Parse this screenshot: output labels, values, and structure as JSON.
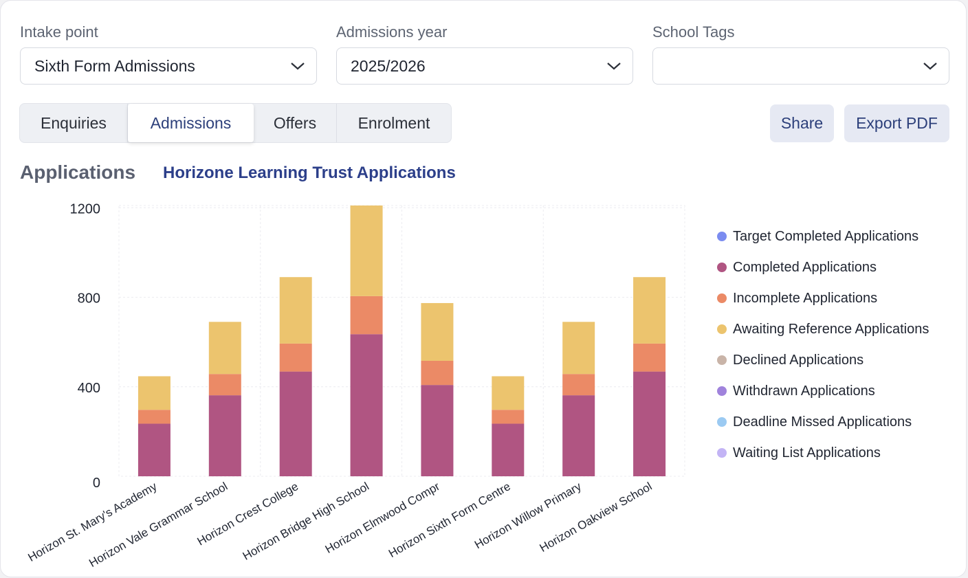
{
  "filters": {
    "intake": {
      "label": "Intake point",
      "value": "Sixth Form Admissions"
    },
    "year": {
      "label": "Admissions year",
      "value": "2025/2026"
    },
    "tags": {
      "label": "School Tags",
      "value": ""
    }
  },
  "tabs": [
    {
      "label": "Enquiries",
      "active": false
    },
    {
      "label": "Admissions",
      "active": true
    },
    {
      "label": "Offers",
      "active": false
    },
    {
      "label": "Enrolment",
      "active": false
    }
  ],
  "actions": {
    "share": "Share",
    "export": "Export PDF"
  },
  "section": {
    "title": "Applications",
    "link": "Horizone Learning Trust Applications"
  },
  "legend": [
    {
      "label": "Target Completed Applications",
      "color": "#7b8cf0"
    },
    {
      "label": "Completed Applications",
      "color": "#b05582"
    },
    {
      "label": "Incomplete Applications",
      "color": "#eb8a66"
    },
    {
      "label": "Awaiting Reference Applications",
      "color": "#ecc46e"
    },
    {
      "label": "Declined Applications",
      "color": "#c9b4a8"
    },
    {
      "label": "Withdrawn Applications",
      "color": "#a083dc"
    },
    {
      "label": "Deadline Missed Applications",
      "color": "#9bcaf2"
    },
    {
      "label": "Waiting List Applications",
      "color": "#c3b4f5"
    }
  ],
  "chart_data": {
    "type": "bar",
    "stacked": true,
    "categories": [
      "Horizon St. Mary's Academy",
      "Horizon Vale Grammar School",
      "Horizon Crest College",
      "Horizon Bridge High School",
      "Horizon Elmwood Compr",
      "Horizon Sixth Form Centre",
      "Horizon Willow Primary",
      "Horizon Oakview School"
    ],
    "series": [
      {
        "name": "Completed Applications",
        "color": "#b05582",
        "values": [
          235,
          362,
          468,
          635,
          408,
          235,
          362,
          468
        ]
      },
      {
        "name": "Incomplete Applications",
        "color": "#eb8a66",
        "values": [
          62,
          95,
          125,
          170,
          108,
          62,
          95,
          125
        ]
      },
      {
        "name": "Awaiting Reference Applications",
        "color": "#ecc46e",
        "values": [
          150,
          233,
          297,
          405,
          258,
          150,
          233,
          297
        ]
      }
    ],
    "yticks": [
      0,
      400,
      800,
      1200
    ],
    "ylim": [
      0,
      1210
    ],
    "grid": true
  }
}
